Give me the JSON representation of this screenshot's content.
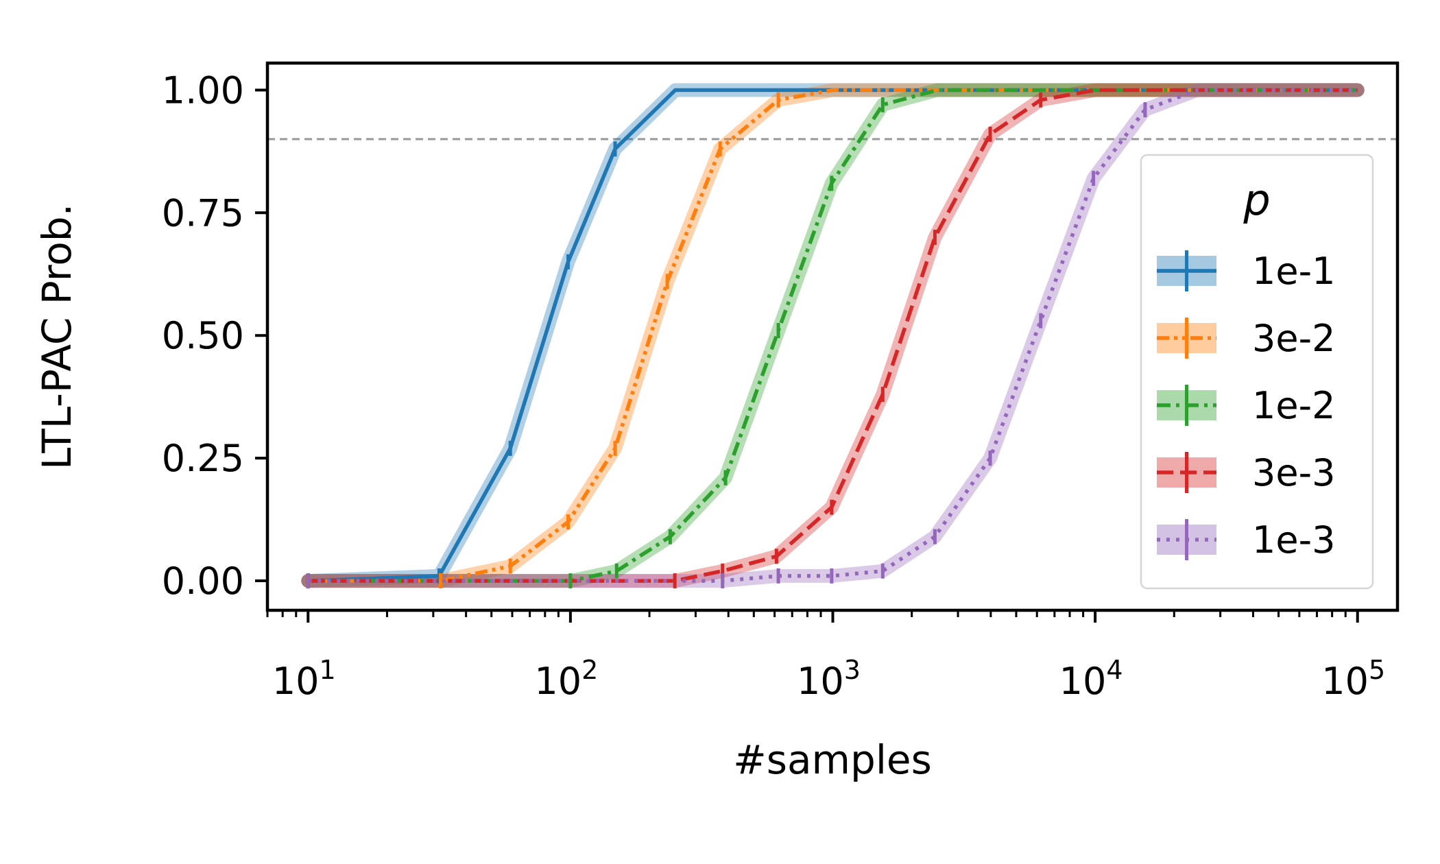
{
  "chart_data": {
    "type": "line",
    "xlabel": "#samples",
    "ylabel": "LTL-PAC Prob.",
    "xscale": "log",
    "xlim": [
      7.0,
      142000
    ],
    "ylim": [
      -0.06,
      1.055
    ],
    "grid": false,
    "x_tick_labels": [
      "10",
      "10",
      "10",
      "10",
      "10"
    ],
    "x_tick_exponents": [
      "1",
      "2",
      "3",
      "4",
      "5"
    ],
    "y_ticks": [
      0.0,
      0.25,
      0.5,
      0.75,
      1.0
    ],
    "y_tick_labels": [
      "0.00",
      "0.25",
      "0.50",
      "0.75",
      "1.00"
    ],
    "reference_line": {
      "y": 0.9,
      "style": "dashed",
      "color": "#999999"
    },
    "legend": {
      "title": "p",
      "placement": "center-right"
    },
    "x": [
      10,
      15.8,
      25.1,
      39.8,
      63.1,
      100,
      158,
      251,
      398,
      631,
      1000,
      1585,
      2512,
      3981,
      6310,
      10000,
      15849,
      25119,
      39811,
      63096,
      100000
    ],
    "series": [
      {
        "name": "1e-1",
        "color": "#1f77b4",
        "dash": "",
        "values": [
          0,
          0,
          0,
          0.01,
          0.27,
          0.65,
          0.88,
          1,
          1,
          1,
          1,
          1,
          1,
          1,
          1,
          1,
          1,
          1,
          1,
          1,
          1
        ],
        "points": [
          [
            10,
            0
          ],
          [
            31.6,
            0.01
          ],
          [
            59,
            0.27
          ],
          [
            98,
            0.65
          ],
          [
            148,
            0.88
          ],
          [
            251,
            1
          ],
          [
            100000,
            1
          ]
        ]
      },
      {
        "name": "3e-2",
        "color": "#ff7f0e",
        "dash": "18,7,5,7,5,7",
        "values": [
          0,
          0,
          0,
          0,
          0.03,
          0.13,
          0.28,
          0.62,
          0.88,
          0.98,
          1,
          1,
          1,
          1,
          1,
          1,
          1,
          1,
          1,
          1,
          1
        ],
        "points": [
          [
            10,
            0
          ],
          [
            32,
            0
          ],
          [
            59,
            0.03
          ],
          [
            98,
            0.12
          ],
          [
            148,
            0.27
          ],
          [
            234,
            0.61
          ],
          [
            372,
            0.88
          ],
          [
            620,
            0.98
          ],
          [
            1000,
            1
          ],
          [
            100000,
            1
          ]
        ]
      },
      {
        "name": "1e-2",
        "color": "#2ca02c",
        "dash": "20,8,5,8",
        "values": [
          0,
          0,
          0,
          0,
          0,
          0,
          0.02,
          0.09,
          0.21,
          0.51,
          0.81,
          0.97,
          1,
          1,
          1,
          1,
          1,
          1,
          1,
          1,
          1
        ],
        "points": [
          [
            10,
            0
          ],
          [
            100,
            0
          ],
          [
            150,
            0.02
          ],
          [
            240,
            0.09
          ],
          [
            390,
            0.21
          ],
          [
            620,
            0.51
          ],
          [
            990,
            0.81
          ],
          [
            1550,
            0.97
          ],
          [
            2500,
            1
          ],
          [
            100000,
            1
          ]
        ]
      },
      {
        "name": "3e-3",
        "color": "#d62728",
        "dash": "24,10",
        "values": [
          0,
          0,
          0,
          0,
          0,
          0,
          0,
          0,
          0.02,
          0.05,
          0.15,
          0.38,
          0.7,
          0.91,
          0.98,
          1,
          1,
          1,
          1,
          1,
          1
        ],
        "points": [
          [
            10,
            0
          ],
          [
            250,
            0
          ],
          [
            380,
            0.02
          ],
          [
            610,
            0.05
          ],
          [
            990,
            0.15
          ],
          [
            1550,
            0.38
          ],
          [
            2450,
            0.7
          ],
          [
            3980,
            0.91
          ],
          [
            6200,
            0.98
          ],
          [
            10000,
            1
          ],
          [
            100000,
            1
          ]
        ]
      },
      {
        "name": "1e-3",
        "color": "#9467bd",
        "dash": "5,9",
        "values": [
          0,
          0,
          0,
          0,
          0,
          0,
          0,
          0,
          0,
          0.01,
          0.01,
          0.02,
          0.09,
          0.25,
          0.53,
          0.82,
          0.96,
          1,
          1,
          1,
          1
        ],
        "points": [
          [
            10,
            0
          ],
          [
            380,
            0
          ],
          [
            620,
            0.01
          ],
          [
            990,
            0.01
          ],
          [
            1550,
            0.02
          ],
          [
            2450,
            0.09
          ],
          [
            3980,
            0.25
          ],
          [
            6200,
            0.53
          ],
          [
            9850,
            0.82
          ],
          [
            15500,
            0.96
          ],
          [
            24500,
            1
          ],
          [
            100000,
            1
          ]
        ]
      }
    ]
  }
}
